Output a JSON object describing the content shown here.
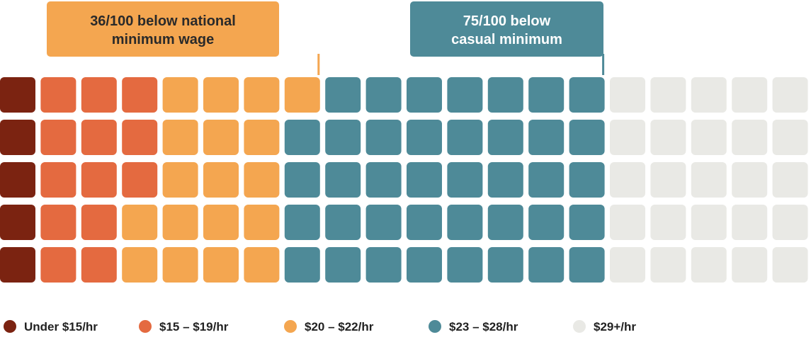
{
  "chart_data": {
    "type": "waffle",
    "total": 100,
    "rows": 5,
    "columns": 20,
    "fill_order": "column-major, top to bottom",
    "categories": [
      {
        "name": "Under $15/hr",
        "value": 5,
        "color": "#7b2311"
      },
      {
        "name": "$15 – $19/hr",
        "value": 13,
        "color": "#e46a40"
      },
      {
        "name": "$20 – $22/hr",
        "value": 18,
        "color": "#f4a650"
      },
      {
        "name": "$23 – $28/hr",
        "value": 39,
        "color": "#4e8a98"
      },
      {
        "name": "$29+/hr",
        "value": 25,
        "color": "#e9e9e5"
      }
    ],
    "annotations": [
      {
        "lines": [
          "36/100 below national",
          "minimum wage"
        ],
        "threshold": 36,
        "bg_color": "#f4a650",
        "text_color": "#2a2a2a"
      },
      {
        "lines": [
          "75/100 below",
          "casual minimum"
        ],
        "threshold": 75,
        "bg_color": "#4e8a98",
        "text_color": "#ffffff"
      }
    ],
    "legend_position": "bottom"
  }
}
